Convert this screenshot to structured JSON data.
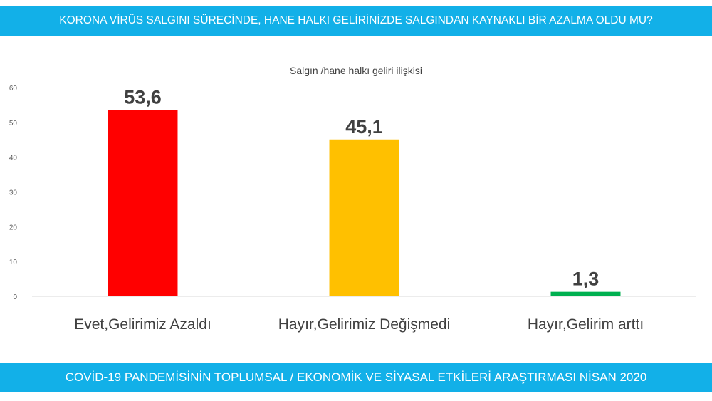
{
  "header": {
    "question": "KORONA VİRÜS SALGINI SÜRECİNDE, HANE HALKI GELİRİNİZDE SALGINDAN KAYNAKLI BİR AZALMA OLDU MU?"
  },
  "footer": {
    "survey": "COVİD-19 PANDEMİSİNİN TOPLUMSAL / EKONOMİK VE SİYASAL ETKİLERİ ARAŞTIRMASI NİSAN 2020"
  },
  "chart_data": {
    "type": "bar",
    "title": "Salgın /hane halkı geliri ilişkisi",
    "categories": [
      "Evet,Gelirimiz Azaldı",
      "Hayır,Gelirimiz Değişmedi",
      "Hayır,Gelirim arttı"
    ],
    "values": [
      53.6,
      45.1,
      1.3
    ],
    "value_labels": [
      "53,6",
      "45,1",
      "1,3"
    ],
    "colors": [
      "#ff0000",
      "#ffc000",
      "#00b050"
    ],
    "ylim": [
      0,
      60
    ],
    "yticks": [
      0,
      10,
      20,
      30,
      40,
      50,
      60
    ],
    "ytick_labels": [
      "0",
      "10",
      "20",
      "30",
      "40",
      "50",
      "60"
    ],
    "xlabel": "",
    "ylabel": "",
    "grid": false
  }
}
